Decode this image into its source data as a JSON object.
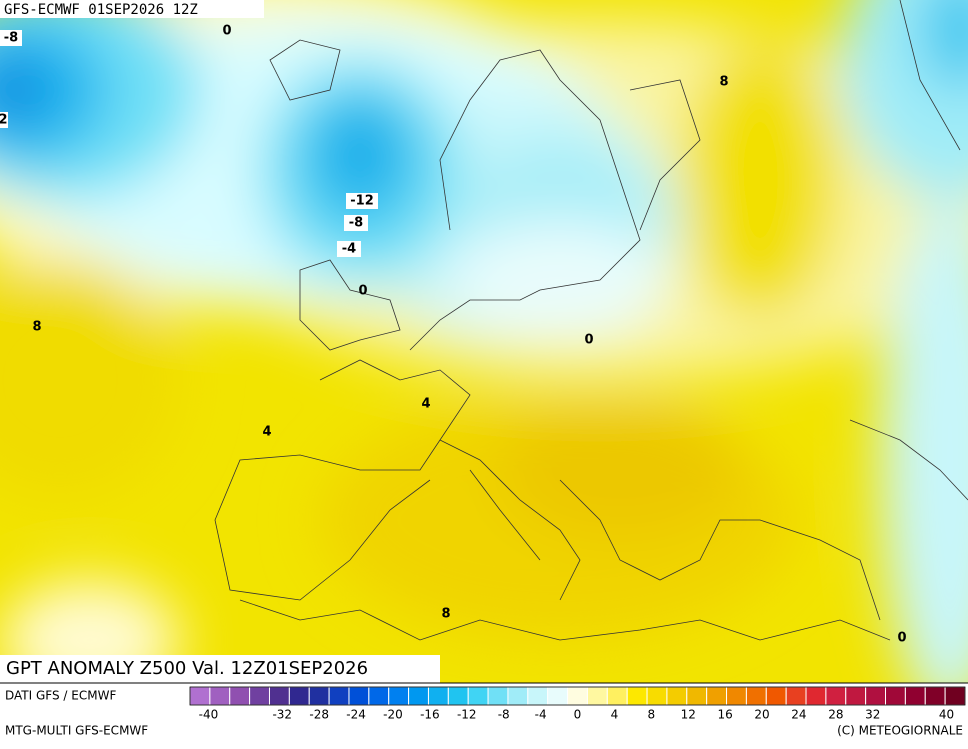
{
  "header": {
    "title": "GFS-ECMWF 01SEP2026 12Z"
  },
  "map": {
    "contour_labels": [
      "-8",
      "0",
      "2",
      "8",
      "-12",
      "-8",
      "-4",
      "0",
      "8",
      "0",
      "4",
      "4",
      "8",
      "0"
    ]
  },
  "footer": {
    "title": "GPT ANOMALY Z500 Val. 12Z01SEP2026",
    "source": "DATI GFS / ECMWF",
    "model": "MTG-MULTI GFS-ECMWF",
    "copyright": "(C) METEOGIORNALE"
  },
  "colorbar": {
    "colors": [
      "#b070d0",
      "#a060c0",
      "#9050b0",
      "#7040a0",
      "#503090",
      "#302890",
      "#2030a0",
      "#1040c0",
      "#0050d8",
      "#0068e8",
      "#0080f0",
      "#0098f0",
      "#10b0f0",
      "#20c4f0",
      "#40d4f4",
      "#70e0f6",
      "#a0ecf8",
      "#c8f6fa",
      "#e8fcfc",
      "#fffde0",
      "#fff8a0",
      "#fff060",
      "#fde800",
      "#f8dc00",
      "#f4cc00",
      "#f0b800",
      "#f0a000",
      "#f08800",
      "#f07000",
      "#f05800",
      "#e84020",
      "#e02830",
      "#d02040",
      "#c01840",
      "#b01040",
      "#a00838",
      "#900030",
      "#800028",
      "#700020"
    ],
    "lim": [
      -42,
      42
    ],
    "ticks": [
      -40,
      -32,
      -28,
      -24,
      -20,
      -16,
      -12,
      -8,
      -4,
      0,
      4,
      8,
      12,
      16,
      20,
      24,
      28,
      32,
      40
    ]
  }
}
